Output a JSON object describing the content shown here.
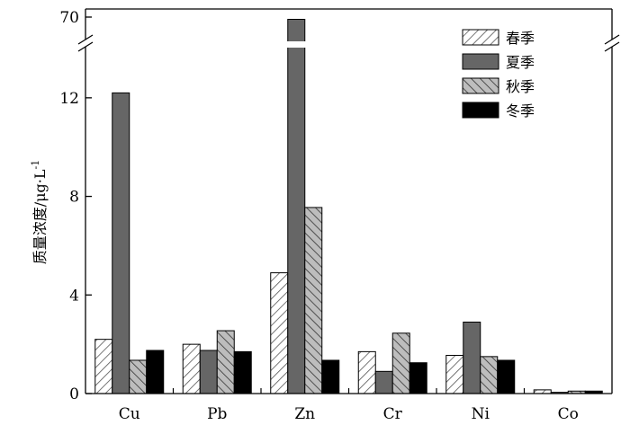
{
  "chart_data": {
    "type": "bar",
    "ylabel_main": "质量浓度/μg·L",
    "ylabel_sup": "-1",
    "categories": [
      "Cu",
      "Pb",
      "Zn",
      "Cr",
      "Ni",
      "Co"
    ],
    "y_ticks": [
      0,
      4,
      8,
      12,
      70
    ],
    "y_axis_break": {
      "after": 14,
      "upper_label": 70
    },
    "ylim": [
      0,
      70
    ],
    "series": [
      {
        "name": "春季",
        "values": [
          2.2,
          2.0,
          4.9,
          1.7,
          1.55,
          0.15
        ],
        "color": "#ffffff",
        "pattern": "hatch-forward"
      },
      {
        "name": "夏季",
        "values": [
          12.2,
          1.75,
          68,
          0.9,
          2.9,
          0.05
        ],
        "color": "#666666",
        "pattern": "solid"
      },
      {
        "name": "秋季",
        "values": [
          1.35,
          2.55,
          7.55,
          2.45,
          1.5,
          0.1
        ],
        "color": "#bbbbbb",
        "pattern": "hatch-back"
      },
      {
        "name": "冬季",
        "values": [
          1.75,
          1.7,
          1.35,
          1.25,
          1.35,
          0.1
        ],
        "color": "#000000",
        "pattern": "solid"
      }
    ],
    "legend_position": "top-right",
    "grid": false
  }
}
